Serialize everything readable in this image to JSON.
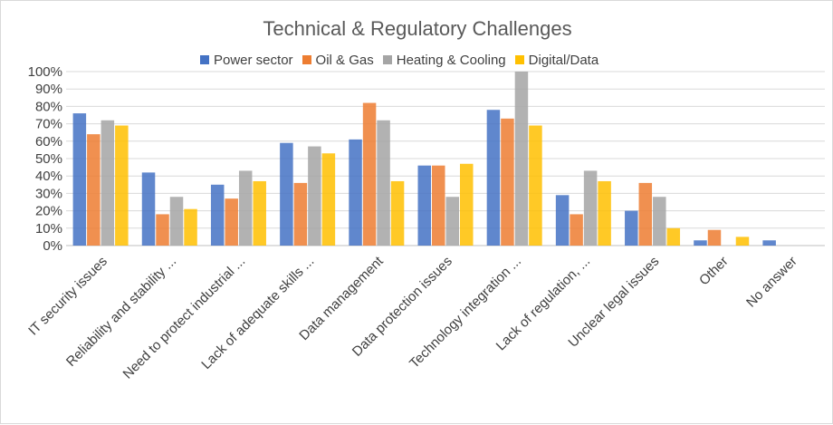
{
  "chart_data": {
    "type": "bar",
    "title": "Technical & Regulatory Challenges",
    "categories": [
      "IT security issues",
      "Reliability  and stability ...",
      "Need to protect industrial ...",
      "Lack of adequate skills ...",
      "Data management",
      "Data protection  issues",
      "Technology  integration ...",
      "Lack of regulation, ...",
      "Unclear  legal issues",
      "Other",
      "No answer"
    ],
    "series": [
      {
        "name": "Power sector",
        "color": "#4472C4",
        "values": [
          76,
          42,
          35,
          59,
          61,
          46,
          78,
          29,
          20,
          3,
          3
        ]
      },
      {
        "name": "Oil & Gas",
        "color": "#ED7D31",
        "values": [
          64,
          18,
          27,
          36,
          82,
          46,
          73,
          18,
          36,
          9,
          0
        ]
      },
      {
        "name": "Heating & Cooling",
        "color": "#A5A5A5",
        "values": [
          72,
          28,
          43,
          57,
          72,
          28,
          100,
          43,
          28,
          0,
          0
        ]
      },
      {
        "name": "Digital/Data",
        "color": "#FFC000",
        "values": [
          69,
          21,
          37,
          53,
          37,
          47,
          69,
          37,
          10,
          5,
          0
        ]
      }
    ],
    "ylim": [
      0,
      100
    ],
    "yticks": [
      "0%",
      "10%",
      "20%",
      "30%",
      "40%",
      "50%",
      "60%",
      "70%",
      "80%",
      "90%",
      "100%"
    ],
    "grid": true,
    "legend_position": "top"
  }
}
